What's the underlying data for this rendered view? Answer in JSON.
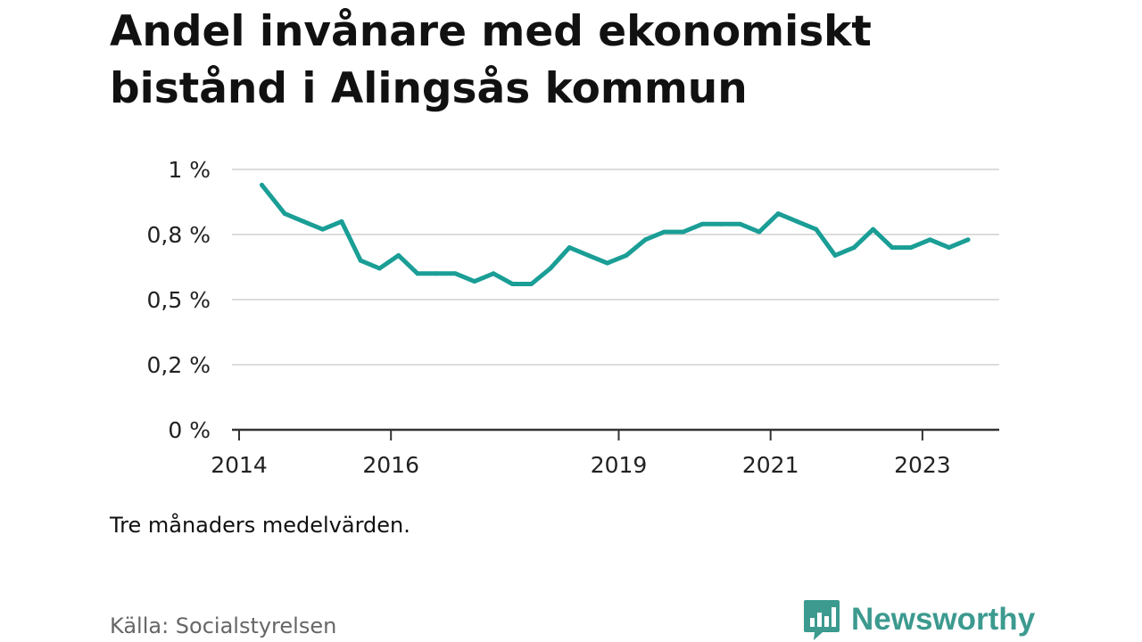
{
  "title_lines": [
    "Andel invånare med ekonomiskt",
    "bistånd i Alingsås kommun"
  ],
  "note": "Tre månaders medelvärden.",
  "source": "Källa: Socialstyrelsen",
  "brand": {
    "name": "Newsworthy",
    "icon": "bar-chart-bubble-icon",
    "color": "#3c9a8f"
  },
  "chart_data": {
    "type": "line",
    "title": "Andel invånare med ekonomiskt bistånd i Alingsås kommun",
    "xlabel": "",
    "ylabel": "",
    "ylim": [
      0,
      1.0
    ],
    "xlim": [
      2014,
      2024.0
    ],
    "grid": true,
    "line_color": "#1a9e96",
    "y_ticks": [
      {
        "value": 0,
        "label": "0 %"
      },
      {
        "value": 0.25,
        "label": "0,2 %"
      },
      {
        "value": 0.5,
        "label": "0,5 %"
      },
      {
        "value": 0.75,
        "label": "0,8 %"
      },
      {
        "value": 1.0,
        "label": "1 %"
      }
    ],
    "x_ticks": [
      {
        "value": 2014,
        "label": "2014"
      },
      {
        "value": 2016,
        "label": "2016"
      },
      {
        "value": 2019,
        "label": "2019"
      },
      {
        "value": 2021,
        "label": "2021"
      },
      {
        "value": 2023,
        "label": "2023"
      }
    ],
    "series": [
      {
        "values": [
          {
            "x": 2014.3,
            "y": 0.94
          },
          {
            "x": 2014.6,
            "y": 0.83
          },
          {
            "x": 2014.85,
            "y": 0.8
          },
          {
            "x": 2015.1,
            "y": 0.77
          },
          {
            "x": 2015.35,
            "y": 0.8
          },
          {
            "x": 2015.6,
            "y": 0.65
          },
          {
            "x": 2015.85,
            "y": 0.62
          },
          {
            "x": 2016.1,
            "y": 0.67
          },
          {
            "x": 2016.35,
            "y": 0.6
          },
          {
            "x": 2016.6,
            "y": 0.6
          },
          {
            "x": 2016.85,
            "y": 0.6
          },
          {
            "x": 2017.1,
            "y": 0.57
          },
          {
            "x": 2017.35,
            "y": 0.6
          },
          {
            "x": 2017.6,
            "y": 0.56
          },
          {
            "x": 2017.85,
            "y": 0.56
          },
          {
            "x": 2018.1,
            "y": 0.62
          },
          {
            "x": 2018.35,
            "y": 0.7
          },
          {
            "x": 2018.6,
            "y": 0.67
          },
          {
            "x": 2018.85,
            "y": 0.64
          },
          {
            "x": 2019.1,
            "y": 0.67
          },
          {
            "x": 2019.35,
            "y": 0.73
          },
          {
            "x": 2019.6,
            "y": 0.76
          },
          {
            "x": 2019.85,
            "y": 0.76
          },
          {
            "x": 2020.1,
            "y": 0.79
          },
          {
            "x": 2020.35,
            "y": 0.79
          },
          {
            "x": 2020.6,
            "y": 0.79
          },
          {
            "x": 2020.85,
            "y": 0.76
          },
          {
            "x": 2021.1,
            "y": 0.83
          },
          {
            "x": 2021.35,
            "y": 0.8
          },
          {
            "x": 2021.6,
            "y": 0.77
          },
          {
            "x": 2021.85,
            "y": 0.67
          },
          {
            "x": 2022.1,
            "y": 0.7
          },
          {
            "x": 2022.35,
            "y": 0.77
          },
          {
            "x": 2022.6,
            "y": 0.7
          },
          {
            "x": 2022.85,
            "y": 0.7
          },
          {
            "x": 2023.1,
            "y": 0.73
          },
          {
            "x": 2023.35,
            "y": 0.7
          },
          {
            "x": 2023.6,
            "y": 0.73
          }
        ]
      }
    ]
  }
}
